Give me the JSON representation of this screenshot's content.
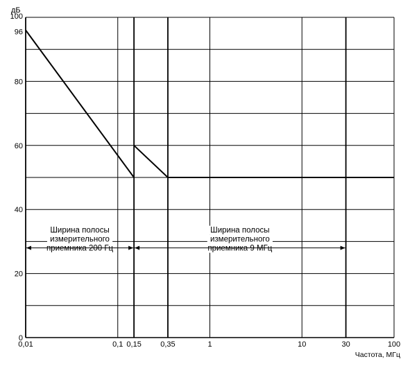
{
  "chart_data": {
    "type": "line",
    "ylabel": "дБ",
    "xlabel": "Частота, МГц",
    "x_scale": "log",
    "xlim": [
      0.01,
      100
    ],
    "ylim": [
      0,
      100
    ],
    "grid": true,
    "x_ticks": [
      {
        "value": 0.01,
        "label": "0,01"
      },
      {
        "value": 0.1,
        "label": "0,1"
      },
      {
        "value": 0.15,
        "label": "0,15"
      },
      {
        "value": 0.35,
        "label": "0,35"
      },
      {
        "value": 1,
        "label": "1"
      },
      {
        "value": 10,
        "label": "10"
      },
      {
        "value": 30,
        "label": "30"
      },
      {
        "value": 100,
        "label": "100"
      }
    ],
    "y_ticks": [
      {
        "value": 0,
        "label": "0"
      },
      {
        "value": 20,
        "label": "20"
      },
      {
        "value": 40,
        "label": "40"
      },
      {
        "value": 60,
        "label": "60"
      },
      {
        "value": 80,
        "label": "80"
      },
      {
        "value": 96,
        "label": "96"
      },
      {
        "value": 100,
        "label": "100"
      }
    ],
    "y_grid": [
      0,
      10,
      20,
      30,
      40,
      50,
      60,
      70,
      80,
      90,
      100
    ],
    "x_grid": [
      0.01,
      0.1,
      0.15,
      0.35,
      1,
      10,
      30,
      100
    ],
    "bold_x_lines": [
      0.15,
      0.35,
      30
    ],
    "series": [
      {
        "points": [
          [
            0.01,
            96
          ],
          [
            0.15,
            50
          ]
        ]
      },
      {
        "points": [
          [
            0.15,
            60
          ],
          [
            0.35,
            50
          ],
          [
            100,
            50
          ]
        ]
      }
    ],
    "annotations": [
      {
        "lines": [
          "Ширина полосы",
          "измерительного",
          "приемника 200 Гц"
        ],
        "x_from": 0.01,
        "x_to": 0.15,
        "y": 28
      },
      {
        "lines": [
          "Ширина полосы",
          "измерительного",
          "приемника 9 МГц"
        ],
        "x_from": 0.15,
        "x_to": 30,
        "y": 28
      }
    ]
  }
}
